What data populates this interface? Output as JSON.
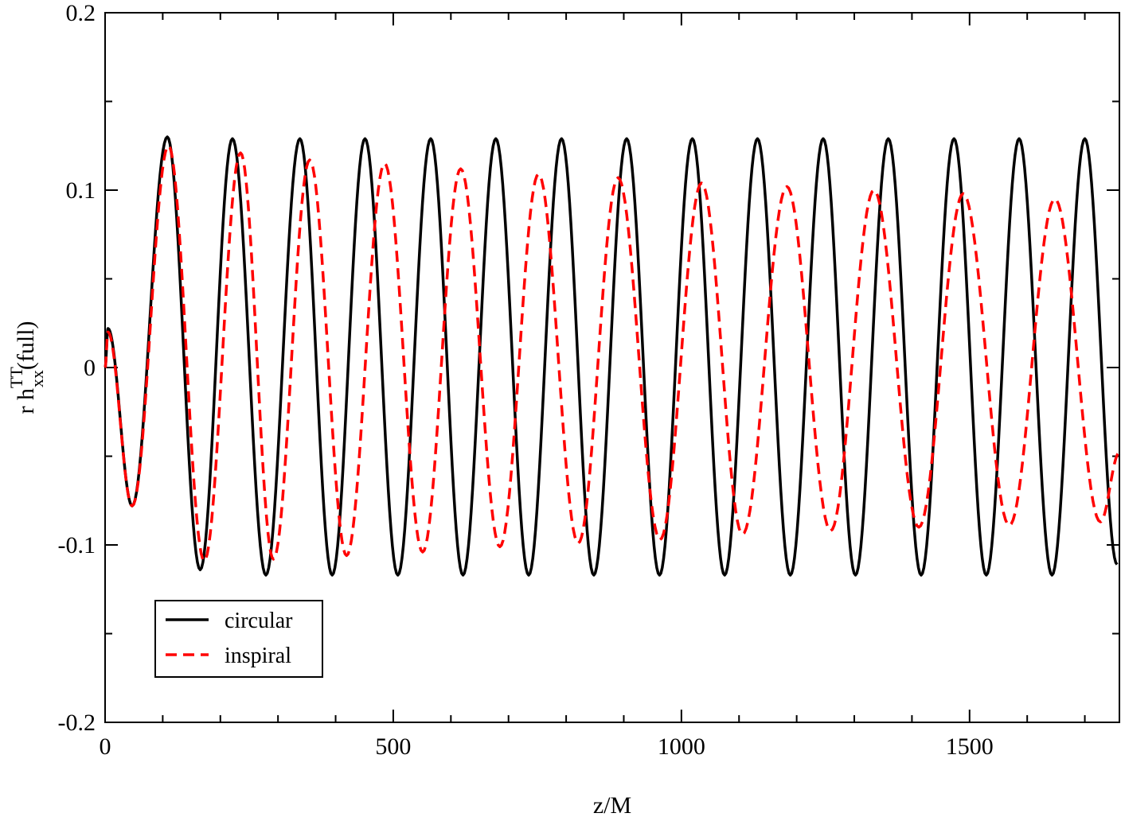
{
  "chart_data": {
    "type": "line",
    "title": "",
    "xlabel": "z/M",
    "ylabel": {
      "main": "r h",
      "sup": "TT",
      "sub": "xx",
      "suffix": "(full)"
    },
    "xlim": [
      0,
      1760
    ],
    "ylim": [
      -0.2,
      0.2
    ],
    "xticks": [
      0,
      500,
      1000,
      1500
    ],
    "xtick_labels": [
      "0",
      "500",
      "1000",
      "1500"
    ],
    "yticks": [
      -0.2,
      -0.1,
      0,
      0.1,
      0.2
    ],
    "ytick_labels": [
      "-0.2",
      "-0.1",
      "0",
      "0.1",
      "0.2"
    ],
    "grid": false,
    "legend_position": "bottom-left",
    "series": [
      {
        "name": "circular",
        "color": "#000000",
        "style": "solid",
        "x": [
          0,
          5,
          47,
          108,
          165,
          221,
          279,
          338,
          394,
          451,
          508,
          565,
          621,
          678,
          735,
          792,
          848,
          905,
          962,
          1019,
          1075,
          1132,
          1189,
          1246,
          1302,
          1359,
          1416,
          1473,
          1529,
          1586,
          1643,
          1700,
          1756
        ],
        "y": [
          0.0,
          0.022,
          -0.078,
          0.13,
          -0.114,
          0.129,
          -0.117,
          0.129,
          -0.117,
          0.129,
          -0.117,
          0.129,
          -0.117,
          0.129,
          -0.117,
          0.129,
          -0.117,
          0.129,
          -0.117,
          0.129,
          -0.117,
          0.129,
          -0.117,
          0.129,
          -0.117,
          0.129,
          -0.117,
          0.129,
          -0.117,
          0.129,
          -0.117,
          0.129,
          -0.111
        ]
      },
      {
        "name": "inspiral",
        "color": "#ff0000",
        "style": "dashed",
        "x": [
          0,
          5,
          47,
          110,
          172,
          235,
          292,
          355,
          419,
          485,
          551,
          617,
          685,
          752,
          821,
          890,
          963,
          1035,
          1106,
          1183,
          1259,
          1334,
          1412,
          1489,
          1569,
          1648,
          1727,
          1760
        ],
        "y": [
          0.0,
          0.02,
          -0.078,
          0.125,
          -0.109,
          0.121,
          -0.108,
          0.117,
          -0.106,
          0.115,
          -0.104,
          0.112,
          -0.101,
          0.109,
          -0.099,
          0.107,
          -0.097,
          0.104,
          -0.094,
          0.102,
          -0.092,
          0.1,
          -0.09,
          0.098,
          -0.089,
          0.095,
          -0.087,
          -0.048
        ]
      }
    ]
  }
}
